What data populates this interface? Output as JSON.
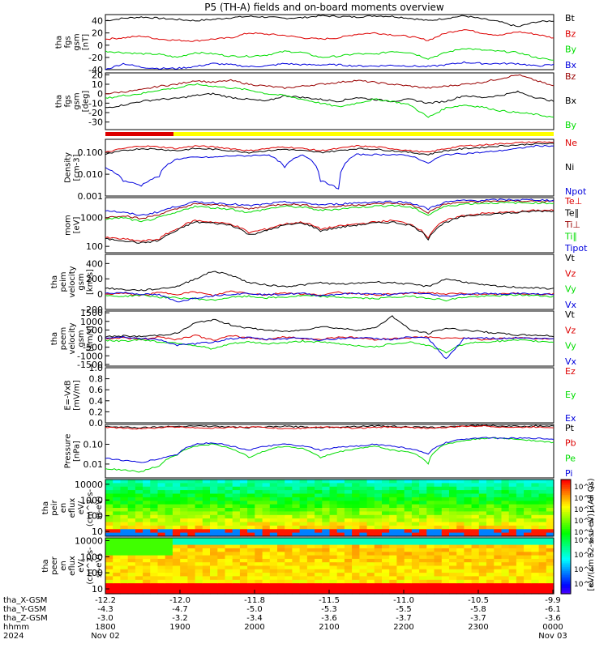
{
  "title": "P5 (TH-A) fields and on-board moments overview",
  "colors": {
    "black": "#000000",
    "red": "#dd0000",
    "green": "#00dd00",
    "blue": "#0000dd",
    "yellow": "#ffff00",
    "darkred": "#990000"
  },
  "chart_data": [
    {
      "id": "p1",
      "type": "line",
      "ylabel": [
        "tha",
        "fgs",
        "gsm",
        "[nT]"
      ],
      "ylim": [
        -40,
        50
      ],
      "ticks": [
        40,
        20,
        0,
        -20,
        -40
      ],
      "series": [
        {
          "name": "Bt",
          "color": "black",
          "values": [
            40,
            44,
            46,
            44,
            42,
            40,
            42,
            45,
            47,
            46,
            44,
            45,
            48,
            47,
            46,
            48,
            47,
            44,
            40,
            44,
            48,
            43,
            38,
            30,
            38,
            40
          ]
        },
        {
          "name": "Bz",
          "color": "red",
          "values": [
            10,
            12,
            15,
            10,
            8,
            7,
            10,
            12,
            20,
            18,
            16,
            12,
            10,
            12,
            18,
            20,
            17,
            14,
            8,
            20,
            26,
            20,
            16,
            22,
            18,
            12
          ]
        },
        {
          "name": "By",
          "color": "green",
          "values": [
            -10,
            -12,
            -14,
            -15,
            -20,
            -12,
            -14,
            -18,
            -18,
            -16,
            -10,
            -12,
            -20,
            -18,
            -14,
            -15,
            -10,
            -12,
            -22,
            -12,
            -5,
            -8,
            -10,
            -12,
            -20,
            -25
          ]
        },
        {
          "name": "Bx",
          "color": "blue",
          "values": [
            -40,
            -30,
            -36,
            -38,
            -38,
            -35,
            -30,
            -32,
            -35,
            -34,
            -30,
            -32,
            -32,
            -32,
            -34,
            -34,
            -33,
            -34,
            -35,
            -32,
            -28,
            -30,
            -30,
            -30,
            -34,
            -32
          ]
        }
      ]
    },
    {
      "id": "p2",
      "type": "line",
      "ylabel": [
        "tha",
        "fgs",
        "gsm",
        "[deg]"
      ],
      "ylim": [
        -38,
        22
      ],
      "ticks": [
        20,
        10,
        0,
        -10,
        -20,
        -30
      ],
      "series": [
        {
          "name": "Bz",
          "color": "darkred",
          "values": [
            0,
            2,
            4,
            8,
            10,
            14,
            12,
            14,
            10,
            8,
            6,
            8,
            10,
            12,
            14,
            12,
            10,
            8,
            6,
            8,
            10,
            12,
            16,
            20,
            14,
            8
          ]
        },
        {
          "name": "Bx",
          "color": "black",
          "values": [
            -15,
            -12,
            -8,
            -6,
            -5,
            -2,
            0,
            -4,
            -6,
            -8,
            -2,
            -4,
            -6,
            -8,
            -4,
            -6,
            -8,
            -6,
            -10,
            -8,
            -2,
            -4,
            -2,
            2,
            -4,
            -8
          ]
        },
        {
          "name": "By",
          "color": "green",
          "values": [
            -5,
            -2,
            0,
            4,
            6,
            10,
            8,
            6,
            4,
            0,
            -2,
            -6,
            -10,
            -14,
            -10,
            -6,
            -8,
            -12,
            -25,
            -15,
            -12,
            -14,
            -18,
            -20,
            -22,
            -25
          ]
        }
      ]
    },
    {
      "id": "p3",
      "type": "line",
      "log": true,
      "ylabel": [
        "Density",
        "[cm-3]"
      ],
      "ylim": [
        0.001,
        0.4
      ],
      "ticks": [
        "0.100",
        "0.010",
        "0.001"
      ],
      "series": [
        {
          "name": "Ne",
          "color": "red",
          "values": [
            0.1,
            0.15,
            0.2,
            0.18,
            0.15,
            0.2,
            0.18,
            0.15,
            0.12,
            0.15,
            0.18,
            0.15,
            0.12,
            0.15,
            0.2,
            0.18,
            0.15,
            0.12,
            0.1,
            0.15,
            0.2,
            0.22,
            0.25,
            0.28,
            0.3,
            0.3
          ]
        },
        {
          "name": "Ni",
          "color": "black",
          "values": [
            0.08,
            0.12,
            0.15,
            0.14,
            0.12,
            0.15,
            0.14,
            0.12,
            0.1,
            0.12,
            0.14,
            0.12,
            0.1,
            0.12,
            0.15,
            0.14,
            0.12,
            0.1,
            0.08,
            0.12,
            0.15,
            0.17,
            0.2,
            0.22,
            0.25,
            0.25
          ]
        },
        {
          "name": "Npot",
          "color": "blue",
          "values": [
            0.02,
            0.005,
            0.003,
            0.008,
            0.05,
            0.06,
            0.06,
            0.07,
            0.07,
            0.08,
            0.02,
            0.08,
            0.005,
            0.002,
            0.08,
            0.08,
            0.08,
            0.07,
            0.03,
            0.08,
            0.09,
            0.1,
            0.12,
            0.15,
            0.2,
            0.2
          ]
        }
      ]
    },
    {
      "id": "p4",
      "type": "line",
      "log": true,
      "ylabel": [
        "mom",
        "[eV]"
      ],
      "ylim": [
        60,
        5000
      ],
      "ticks": [
        "1000",
        "100"
      ],
      "series": [
        {
          "name": "Te⊥",
          "color": "red",
          "values": [
            200,
            180,
            150,
            180,
            400,
            800,
            700,
            600,
            300,
            400,
            600,
            700,
            400,
            500,
            600,
            700,
            800,
            600,
            200,
            800,
            1200,
            1400,
            1500,
            1600,
            1800,
            1800
          ]
        },
        {
          "name": "Te∥",
          "color": "black",
          "values": [
            180,
            160,
            130,
            160,
            350,
            700,
            650,
            550,
            250,
            350,
            550,
            650,
            350,
            450,
            550,
            650,
            700,
            550,
            180,
            700,
            1100,
            1300,
            1400,
            1500,
            1700,
            1700
          ]
        },
        {
          "name": "Ti⊥",
          "color": "darkred",
          "values": [
            1000,
            1200,
            900,
            1300,
            2000,
            3000,
            2800,
            2500,
            2000,
            2500,
            3000,
            2800,
            2200,
            2500,
            2800,
            3000,
            3200,
            2800,
            1500,
            3000,
            3500,
            3600,
            3800,
            3800,
            3800,
            3600
          ]
        },
        {
          "name": "Ti∥",
          "color": "green",
          "values": [
            900,
            1000,
            700,
            1000,
            1500,
            2500,
            2200,
            2000,
            1500,
            2000,
            2500,
            2300,
            1800,
            2000,
            2300,
            2500,
            2700,
            2300,
            1200,
            2500,
            3000,
            3200,
            3300,
            3300,
            3300,
            3200
          ]
        },
        {
          "name": "Tipot",
          "color": "blue",
          "values": [
            1800,
            1500,
            1200,
            1600,
            2500,
            3500,
            3300,
            3000,
            2600,
            3000,
            3500,
            3300,
            2800,
            3000,
            3300,
            3500,
            3700,
            3300,
            2000,
            3500,
            4000,
            4000,
            4200,
            4200,
            4200,
            4000
          ]
        }
      ]
    },
    {
      "id": "p5",
      "type": "line",
      "ylabel": [
        "tha",
        "peim",
        "velocity",
        "gsm",
        "[km/s]"
      ],
      "ylim": [
        -200,
        520
      ],
      "ticks": [
        400,
        200,
        0,
        -200
      ],
      "series": [
        {
          "name": "Vt",
          "color": "black",
          "values": [
            80,
            60,
            50,
            70,
            100,
            200,
            300,
            250,
            150,
            120,
            100,
            120,
            150,
            130,
            140,
            160,
            150,
            130,
            100,
            200,
            160,
            120,
            100,
            90,
            80,
            70
          ]
        },
        {
          "name": "Vz",
          "color": "red",
          "values": [
            0,
            10,
            -20,
            20,
            0,
            30,
            -20,
            40,
            10,
            -10,
            20,
            0,
            -10,
            20,
            10,
            -10,
            0,
            10,
            20,
            0,
            10,
            -10,
            0,
            10,
            0,
            0
          ]
        },
        {
          "name": "Vy",
          "color": "green",
          "values": [
            -20,
            -30,
            -10,
            -40,
            -50,
            -60,
            -80,
            -40,
            -30,
            -50,
            -40,
            -20,
            -30,
            -40,
            -50,
            -60,
            -40,
            -30,
            -50,
            -80,
            -40,
            -30,
            -20,
            -10,
            -20,
            -30
          ]
        },
        {
          "name": "Vx",
          "color": "blue",
          "values": [
            10,
            20,
            0,
            -10,
            -100,
            -50,
            -20,
            0,
            10,
            -10,
            0,
            10,
            -20,
            0,
            10,
            0,
            -10,
            20,
            0,
            -30,
            0,
            10,
            0,
            10,
            0,
            0
          ]
        }
      ]
    },
    {
      "id": "p6",
      "type": "line",
      "ylabel": [
        "tha",
        "peem",
        "velocity",
        "gsm",
        "[km/s]"
      ],
      "ylim": [
        -1600,
        1600
      ],
      "ticks": [
        "1500",
        "1000",
        "500",
        "0",
        "-500",
        "-1000",
        "-1500"
      ],
      "series": [
        {
          "name": "Vt",
          "color": "black",
          "values": [
            100,
            150,
            120,
            200,
            300,
            900,
            1100,
            800,
            600,
            500,
            400,
            500,
            700,
            600,
            500,
            600,
            1300,
            500,
            300,
            600,
            500,
            400,
            300,
            200,
            200,
            150
          ]
        },
        {
          "name": "Vz",
          "color": "red",
          "values": [
            0,
            50,
            -50,
            100,
            -50,
            200,
            -100,
            150,
            50,
            -50,
            100,
            0,
            -50,
            100,
            50,
            -50,
            0,
            50,
            100,
            0,
            50,
            -50,
            0,
            50,
            0,
            0
          ]
        },
        {
          "name": "Vy",
          "color": "green",
          "values": [
            -100,
            -150,
            -50,
            -200,
            -250,
            -400,
            -600,
            -300,
            -200,
            -300,
            -250,
            -150,
            -200,
            -300,
            -400,
            -500,
            -300,
            -200,
            -400,
            -800,
            -300,
            -200,
            -150,
            -100,
            -150,
            -200
          ]
        },
        {
          "name": "Vx",
          "color": "blue",
          "values": [
            50,
            100,
            0,
            -50,
            -400,
            -300,
            -200,
            0,
            50,
            -50,
            0,
            50,
            -100,
            0,
            50,
            0,
            -50,
            100,
            0,
            -1200,
            0,
            50,
            0,
            50,
            0,
            0
          ]
        }
      ]
    },
    {
      "id": "p7",
      "type": "line",
      "ylabel": [
        "E=-VxB",
        "[mV/m]"
      ],
      "ylim": [
        0,
        1
      ],
      "ticks": [
        "1.0",
        "0.8",
        "0.6",
        "0.4",
        "0.2",
        "0.0"
      ],
      "series": [
        {
          "name": "Ez",
          "color": "red",
          "values": []
        },
        {
          "name": "Ey",
          "color": "green",
          "values": []
        },
        {
          "name": "Ex",
          "color": "blue",
          "values": []
        }
      ]
    },
    {
      "id": "p8",
      "type": "line",
      "log": true,
      "ylabel": [
        "Pressure",
        "[nPa]"
      ],
      "ylim": [
        0.002,
        1.0
      ],
      "ticks": [
        "0.10",
        "0.01"
      ],
      "series": [
        {
          "name": "Pt",
          "color": "black",
          "values": [
            0.8,
            0.75,
            0.7,
            0.75,
            0.8,
            0.85,
            0.8,
            0.75,
            0.7,
            0.75,
            0.8,
            0.75,
            0.7,
            0.75,
            0.8,
            0.85,
            0.8,
            0.75,
            0.7,
            0.75,
            0.85,
            0.9,
            0.85,
            0.8,
            0.85,
            0.8
          ]
        },
        {
          "name": "Pb",
          "color": "red",
          "values": [
            0.7,
            0.65,
            0.6,
            0.7,
            0.75,
            0.7,
            0.65,
            0.7,
            0.75,
            0.7,
            0.6,
            0.65,
            0.75,
            0.7,
            0.65,
            0.7,
            0.75,
            0.7,
            0.65,
            0.7,
            0.8,
            0.85,
            0.75,
            0.7,
            0.75,
            0.7
          ]
        },
        {
          "name": "Pe",
          "color": "green",
          "values": [
            0.006,
            0.005,
            0.004,
            0.008,
            0.03,
            0.08,
            0.1,
            0.06,
            0.02,
            0.05,
            0.08,
            0.06,
            0.02,
            0.04,
            0.06,
            0.08,
            0.05,
            0.04,
            0.01,
            0.1,
            0.15,
            0.2,
            0.2,
            0.18,
            0.15,
            0.12
          ]
        },
        {
          "name": "Pi",
          "color": "blue",
          "values": [
            0.02,
            0.015,
            0.012,
            0.018,
            0.03,
            0.1,
            0.12,
            0.08,
            0.05,
            0.08,
            0.1,
            0.08,
            0.05,
            0.07,
            0.08,
            0.1,
            0.08,
            0.06,
            0.03,
            0.12,
            0.18,
            0.22,
            0.2,
            0.2,
            0.2,
            0.18
          ]
        }
      ]
    },
    {
      "id": "p9",
      "type": "heatmap",
      "log": true,
      "ylabel": [
        "tha",
        "peir",
        "en",
        "eflux",
        "eV/",
        "(cm^2-s-",
        "sr-eV)"
      ],
      "ylim": [
        5,
        20000
      ],
      "ticks": [
        "10000",
        "1000",
        "100",
        "10"
      ]
    },
    {
      "id": "p10",
      "type": "heatmap",
      "log": true,
      "ylabel": [
        "tha",
        "peer",
        "en",
        "eflux",
        "eV/",
        "(cm^2-s-",
        "sr-eV)"
      ],
      "ylim": [
        5,
        15000
      ],
      "ticks": [
        "10000",
        "1000",
        "100",
        "10"
      ]
    }
  ],
  "colorbar": {
    "label": "[eV/(cm^2-s-sr-eV)] (All Qs)",
    "ticks_upper": [
      "10^7",
      "10^6",
      "10^5",
      "10^4",
      "10^3"
    ],
    "ticks_lower": [
      "10^8",
      "10^6",
      "10^4",
      "10^2"
    ]
  },
  "footer": {
    "rows": [
      {
        "label": "tha_X-GSM",
        "values": [
          "-12.2",
          "-12.0",
          "-11.8",
          "-11.5",
          "-11.0",
          "-10.5",
          "-9.9"
        ]
      },
      {
        "label": "tha_Y-GSM",
        "values": [
          "-4.3",
          "-4.7",
          "-5.0",
          "-5.3",
          "-5.5",
          "-5.8",
          "-6.1"
        ]
      },
      {
        "label": "tha_Z-GSM",
        "values": [
          "-3.0",
          "-3.2",
          "-3.4",
          "-3.6",
          "-3.7",
          "-3.7",
          "-3.6"
        ]
      },
      {
        "label": "hhmm",
        "values": [
          "1800",
          "1900",
          "2000",
          "2100",
          "2200",
          "2300",
          "0000"
        ]
      },
      {
        "label": "2024",
        "values": [
          "Nov 02",
          "",
          "",
          "",
          "",
          "",
          "Nov 03"
        ]
      }
    ]
  }
}
